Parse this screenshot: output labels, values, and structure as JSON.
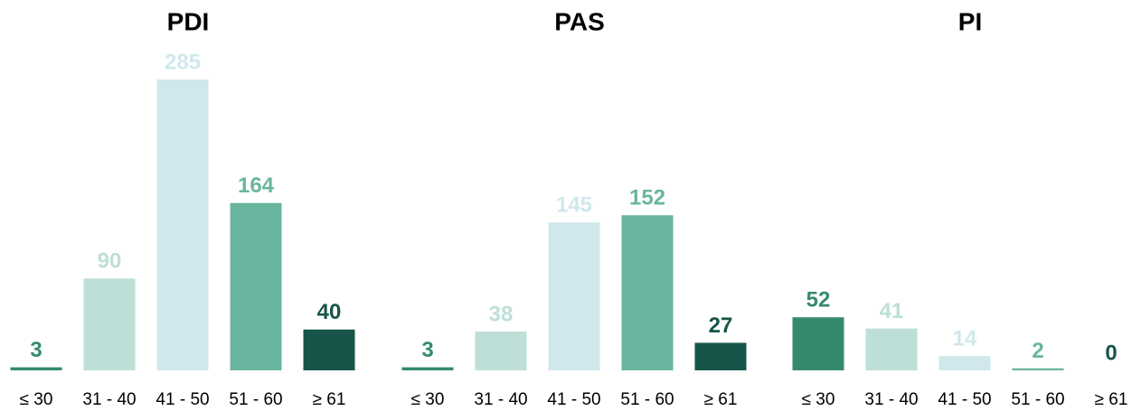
{
  "chart_data": [
    {
      "type": "bar",
      "title": "PDI",
      "categories": [
        "≤ 30",
        "31 - 40",
        "41 - 50",
        "51 - 60",
        "≥ 61"
      ],
      "values": [
        3,
        90,
        285,
        164,
        40
      ],
      "colors": [
        "#358a6e",
        "#bedfd8",
        "#d0e8ec",
        "#6ab59f",
        "#17554a"
      ]
    },
    {
      "type": "bar",
      "title": "PAS",
      "categories": [
        "≤ 30",
        "31 - 40",
        "41 - 50",
        "51 - 60",
        "≥ 61"
      ],
      "values": [
        3,
        38,
        145,
        152,
        27
      ],
      "colors": [
        "#358a6e",
        "#bedfd8",
        "#d0e8ec",
        "#6ab59f",
        "#17554a"
      ]
    },
    {
      "type": "bar",
      "title": "PI",
      "categories": [
        "≤ 30",
        "31 - 40",
        "41 - 50",
        "51 - 60",
        "≥ 61"
      ],
      "values": [
        52,
        41,
        14,
        2,
        0
      ],
      "colors": [
        "#358a6e",
        "#bedfd8",
        "#d0e8ec",
        "#6ab59f",
        "#17554a"
      ]
    }
  ]
}
